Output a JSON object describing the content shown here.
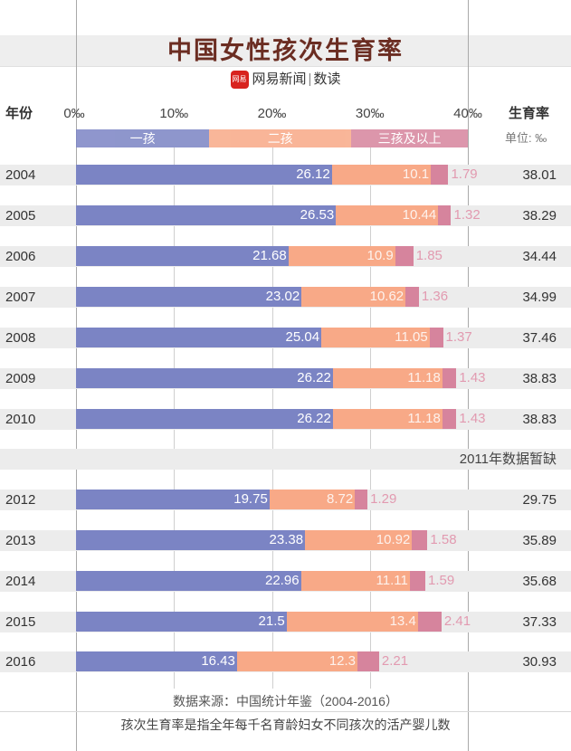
{
  "header": {
    "title": "中国女性孩次生育率",
    "brand_logo_text": "网易",
    "brand_name": "网易新闻",
    "brand_sep": "|",
    "brand_section": "数读"
  },
  "labels": {
    "year_header": "年份",
    "total_header": "生育率",
    "unit": "单位: ‰",
    "missing_note": "2011年数据暂缺",
    "source": "数据来源：中国统计年鉴（2004-2016）",
    "footnote": "孩次生育率是指全年每千名育龄妇女不同孩次的活产婴儿数"
  },
  "colors": {
    "first": "#7b84c4",
    "second": "#f8a987",
    "third": "#d6849d",
    "third_label": "#e29ab0",
    "title": "#6b2d22"
  },
  "chart_data": {
    "type": "bar",
    "orientation": "horizontal",
    "stacked": true,
    "title": "中国女性孩次生育率",
    "xlabel": "",
    "ylabel": "年份",
    "xlim": [
      0,
      40
    ],
    "x_ticks": [
      "0‰",
      "10‰",
      "20‰",
      "30‰",
      "40‰"
    ],
    "x_tick_values": [
      0,
      10,
      20,
      30,
      40
    ],
    "legend": [
      "一孩",
      "二孩",
      "三孩及以上"
    ],
    "legend_placement": "top",
    "grid": true,
    "categories": [
      "2004",
      "2005",
      "2006",
      "2007",
      "2008",
      "2009",
      "2010",
      "2012",
      "2013",
      "2014",
      "2015",
      "2016"
    ],
    "series": [
      {
        "name": "一孩",
        "values": [
          26.12,
          26.53,
          21.68,
          23.02,
          25.04,
          26.22,
          26.22,
          19.75,
          23.38,
          22.96,
          21.5,
          16.43
        ]
      },
      {
        "name": "二孩",
        "values": [
          10.1,
          10.44,
          10.9,
          10.62,
          11.05,
          11.18,
          11.18,
          8.72,
          10.92,
          11.11,
          13.4,
          12.3
        ]
      },
      {
        "name": "三孩及以上",
        "values": [
          1.79,
          1.32,
          1.85,
          1.36,
          1.37,
          1.43,
          1.43,
          1.29,
          1.58,
          1.59,
          2.41,
          2.21
        ]
      }
    ],
    "totals": [
      38.01,
      38.29,
      34.44,
      34.99,
      37.46,
      38.83,
      38.83,
      29.75,
      35.89,
      35.68,
      37.33,
      30.93
    ],
    "labels": {
      "first": [
        "26.12",
        "26.53",
        "21.68",
        "23.02",
        "25.04",
        "26.22",
        "26.22",
        "19.75",
        "23.38",
        "22.96",
        "21.5",
        "16.43"
      ],
      "second": [
        "10.1",
        "10.44",
        "10.9",
        "10.62",
        "11.05",
        "11.18",
        "11.18",
        "8.72",
        "10.92",
        "11.11",
        "13.4",
        "12.3"
      ],
      "third": [
        "1.79",
        "1.32",
        "1.85",
        "1.36",
        "1.37",
        "1.43",
        "1.43",
        "1.29",
        "1.58",
        "1.59",
        "2.41",
        "2.21"
      ],
      "totals": [
        "38.01",
        "38.29",
        "34.44",
        "34.99",
        "37.46",
        "38.83",
        "38.83",
        "29.75",
        "35.89",
        "35.68",
        "37.33",
        "30.93"
      ]
    },
    "missing_years": [
      "2011"
    ],
    "annotations": [
      "2011年数据暂缺"
    ]
  }
}
